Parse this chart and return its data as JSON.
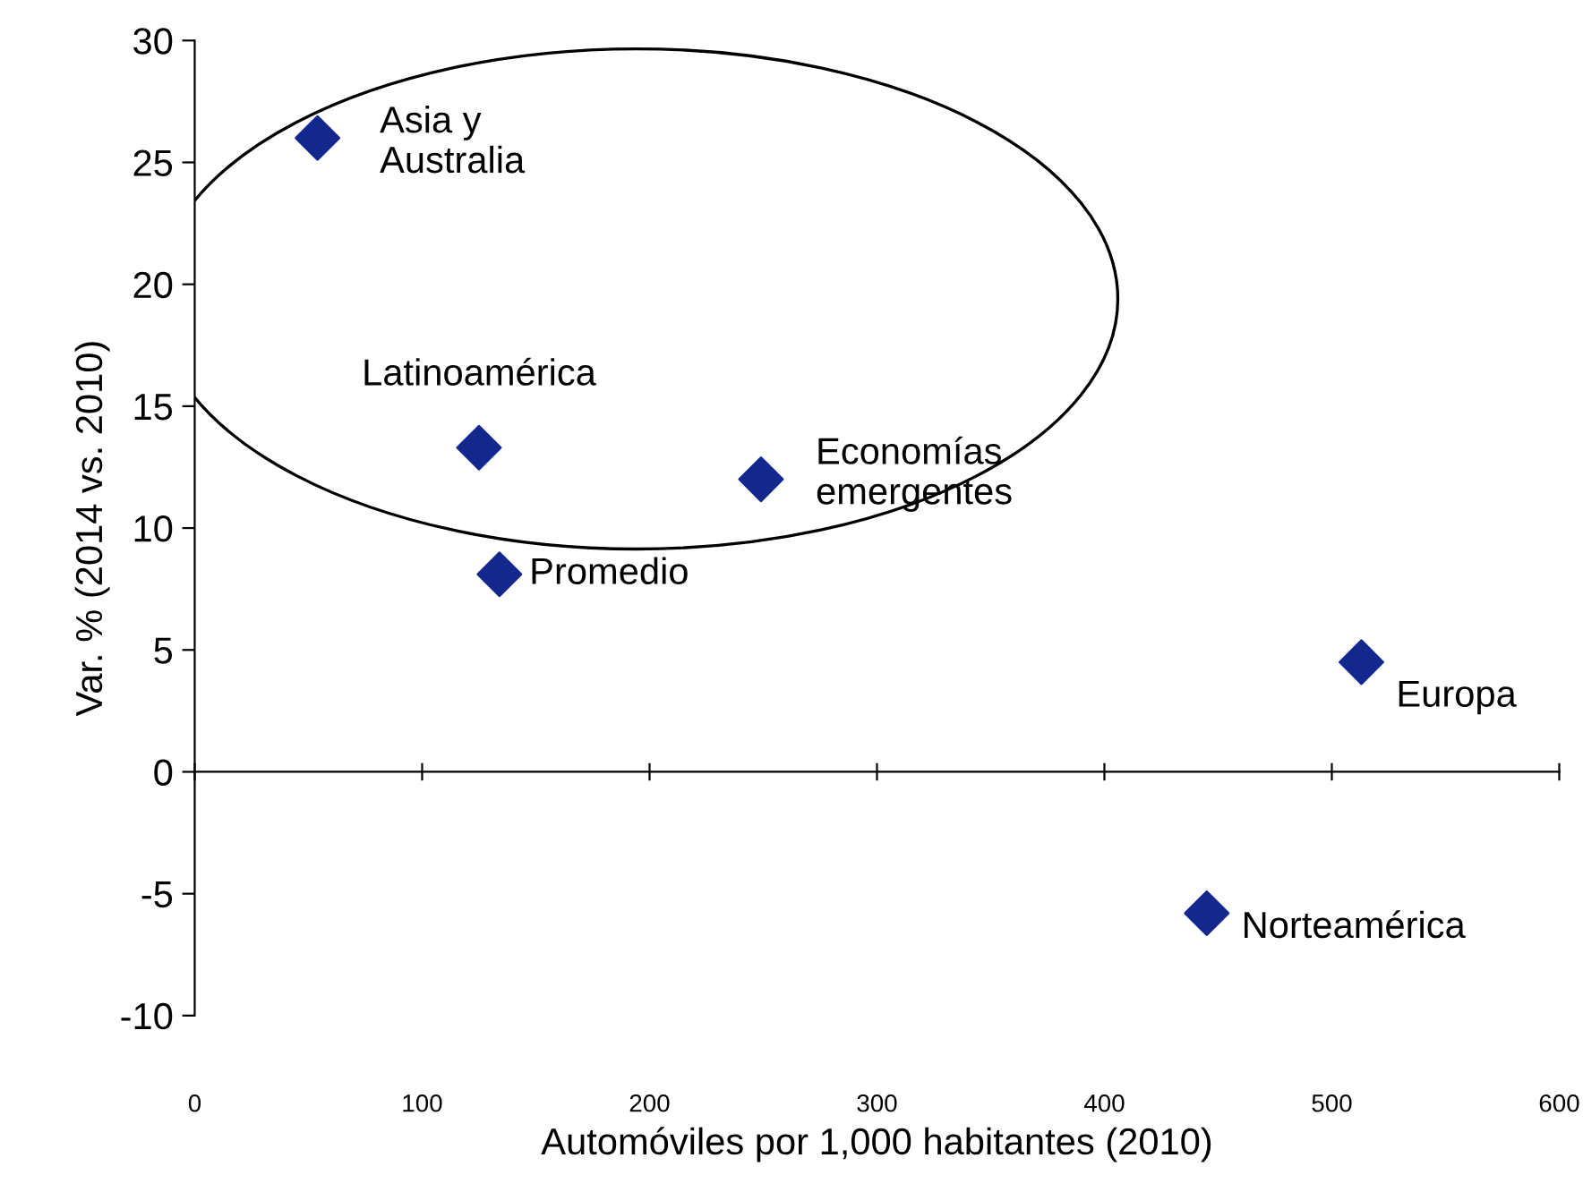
{
  "chart_data": {
    "type": "scatter",
    "xlabel": "Automóviles por 1,000 habitantes (2010)",
    "ylabel": "Var. % (2014 vs. 2010)",
    "x": [
      54,
      125,
      249,
      134,
      513,
      445
    ],
    "series": [
      {
        "color": "#13288c",
        "values": [
          26.0,
          13.3,
          12.0,
          8.1,
          4.5,
          -5.8
        ]
      }
    ],
    "marker": "diamond",
    "xlim": [
      0,
      600
    ],
    "xticks": [
      0,
      100,
      200,
      300,
      400,
      500,
      600
    ],
    "ylim": [
      -10,
      30
    ],
    "yticks": [
      -10,
      -5,
      0,
      5,
      10,
      15,
      20,
      25,
      30
    ],
    "annotations": [
      {
        "text": "Asia y\nAustralia",
        "x": 54,
        "y": 26.0
      },
      {
        "text": "Latinoamérica",
        "x": 125,
        "y": 13.3
      },
      {
        "text": "Economías\nemergentes",
        "x": 249,
        "y": 12.0
      },
      {
        "text": "Promedio",
        "x": 134,
        "y": 8.1
      },
      {
        "text": "Europa",
        "x": 513,
        "y": 4.5
      },
      {
        "text": "Norteamérica",
        "x": 445,
        "y": -5.8
      }
    ]
  }
}
